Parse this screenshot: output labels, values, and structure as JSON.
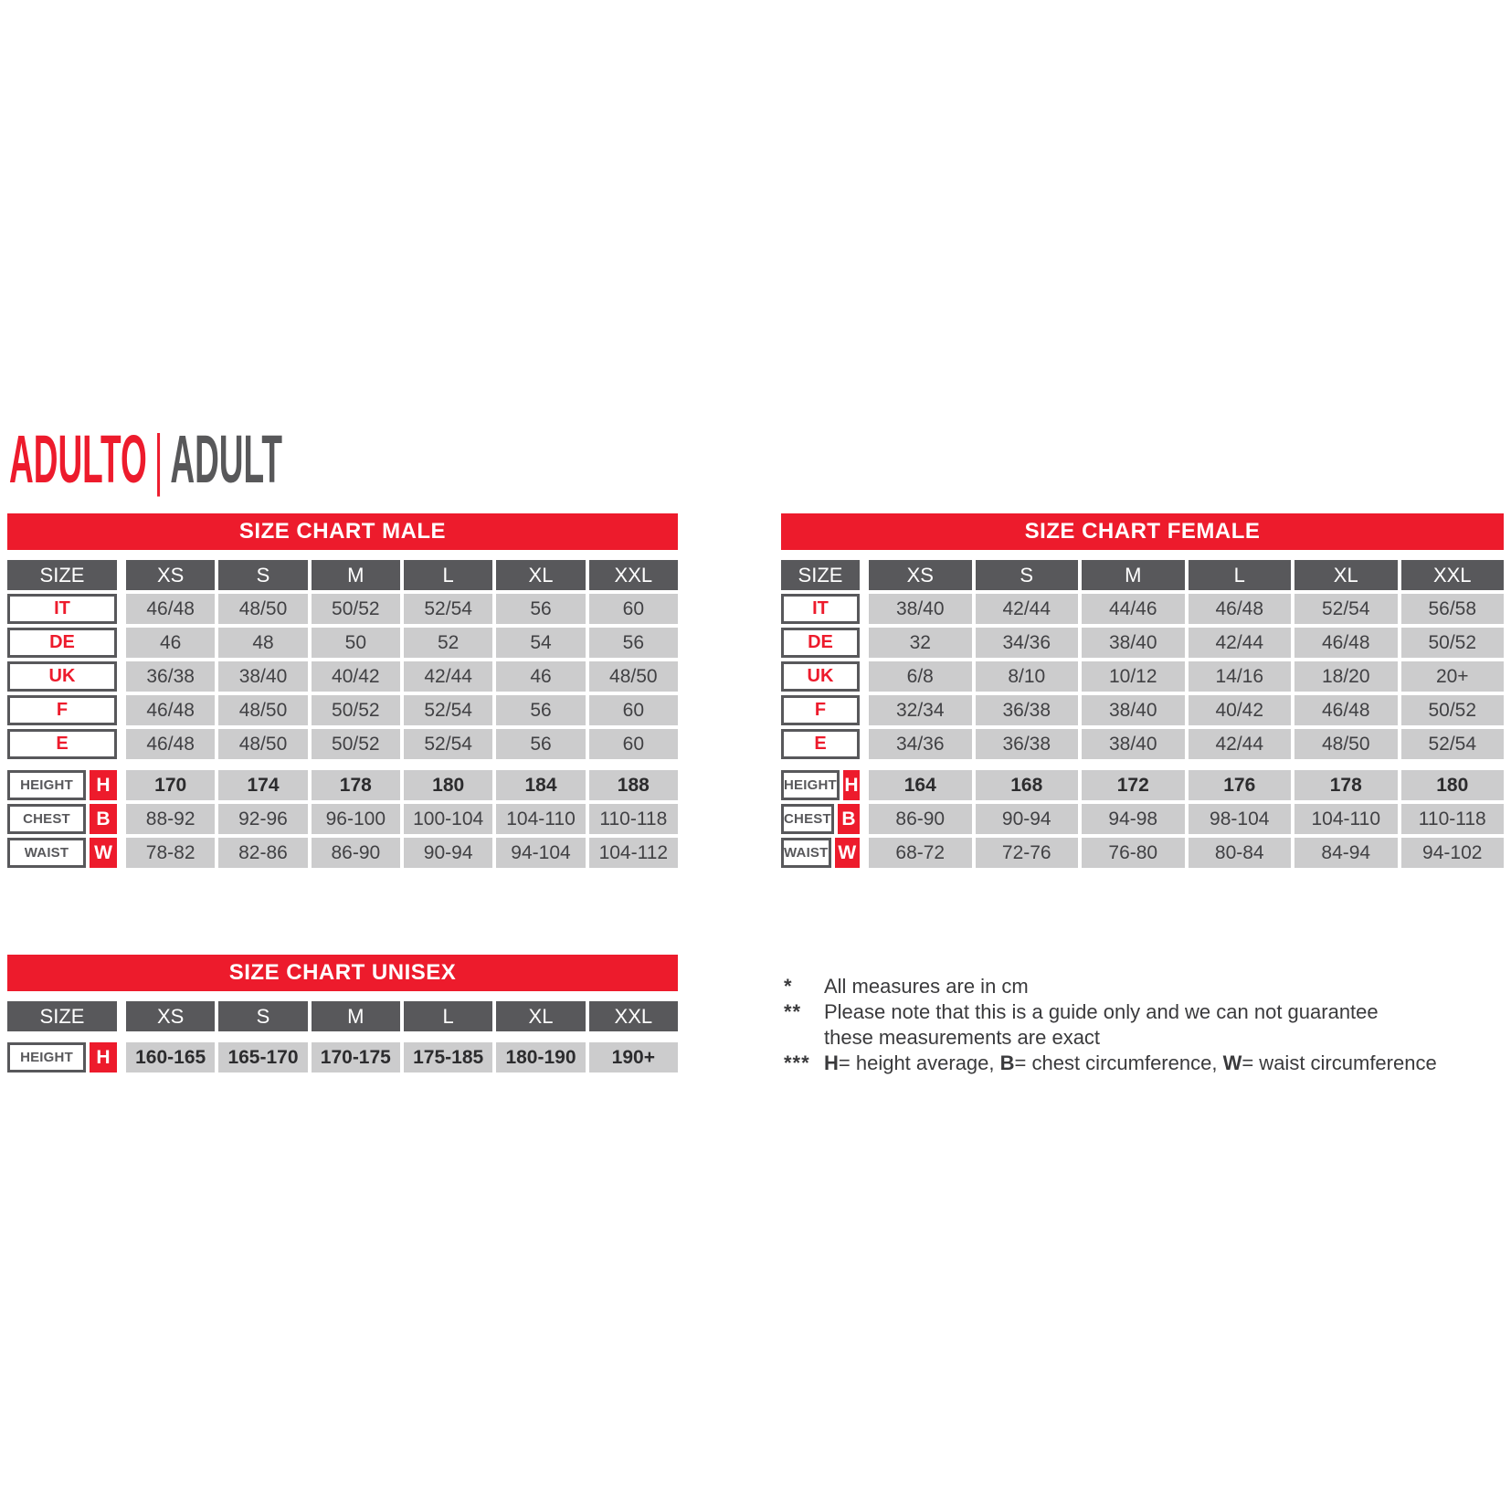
{
  "page": {
    "title": {
      "primary": "ADULTO",
      "separator": "|",
      "secondary": "ADULT"
    }
  },
  "colors": {
    "red": "#ed1b2c",
    "dark_gray": "#58585b",
    "light_gray": "#cccccd",
    "text_dark": "#414144",
    "title_gray": "#58585a"
  },
  "shared": {
    "size_label": "SIZE",
    "columns": [
      "XS",
      "S",
      "M",
      "L",
      "XL",
      "XXL"
    ]
  },
  "tables": {
    "male": {
      "title": "SIZE CHART MALE",
      "size_rows": [
        {
          "label": "IT",
          "values": [
            "46/48",
            "48/50",
            "50/52",
            "52/54",
            "56",
            "60"
          ]
        },
        {
          "label": "DE",
          "values": [
            "46",
            "48",
            "50",
            "52",
            "54",
            "56"
          ]
        },
        {
          "label": "UK",
          "values": [
            "36/38",
            "38/40",
            "40/42",
            "42/44",
            "46",
            "48/50"
          ]
        },
        {
          "label": "F",
          "values": [
            "46/48",
            "48/50",
            "50/52",
            "52/54",
            "56",
            "60"
          ]
        },
        {
          "label": "E",
          "values": [
            "46/48",
            "48/50",
            "50/52",
            "52/54",
            "56",
            "60"
          ]
        }
      ],
      "measure_rows": [
        {
          "label": "HEIGHT",
          "code": "H",
          "bold": true,
          "values": [
            "170",
            "174",
            "178",
            "180",
            "184",
            "188"
          ]
        },
        {
          "label": "CHEST",
          "code": "B",
          "bold": false,
          "values": [
            "88-92",
            "92-96",
            "96-100",
            "100-104",
            "104-110",
            "110-118"
          ]
        },
        {
          "label": "WAIST",
          "code": "W",
          "bold": false,
          "values": [
            "78-82",
            "82-86",
            "86-90",
            "90-94",
            "94-104",
            "104-112"
          ]
        }
      ]
    },
    "female": {
      "title": "SIZE CHART FEMALE",
      "size_rows": [
        {
          "label": "IT",
          "values": [
            "38/40",
            "42/44",
            "44/46",
            "46/48",
            "52/54",
            "56/58"
          ]
        },
        {
          "label": "DE",
          "values": [
            "32",
            "34/36",
            "38/40",
            "42/44",
            "46/48",
            "50/52"
          ]
        },
        {
          "label": "UK",
          "values": [
            "6/8",
            "8/10",
            "10/12",
            "14/16",
            "18/20",
            "20+"
          ]
        },
        {
          "label": "F",
          "values": [
            "32/34",
            "36/38",
            "38/40",
            "40/42",
            "46/48",
            "50/52"
          ]
        },
        {
          "label": "E",
          "values": [
            "34/36",
            "36/38",
            "38/40",
            "42/44",
            "48/50",
            "52/54"
          ]
        }
      ],
      "measure_rows": [
        {
          "label": "HEIGHT",
          "code": "H",
          "bold": true,
          "values": [
            "164",
            "168",
            "172",
            "176",
            "178",
            "180"
          ]
        },
        {
          "label": "CHEST",
          "code": "B",
          "bold": false,
          "values": [
            "86-90",
            "90-94",
            "94-98",
            "98-104",
            "104-110",
            "110-118"
          ]
        },
        {
          "label": "WAIST",
          "code": "W",
          "bold": false,
          "values": [
            "68-72",
            "72-76",
            "76-80",
            "80-84",
            "84-94",
            "94-102"
          ]
        }
      ]
    },
    "unisex": {
      "title": "SIZE CHART UNISEX",
      "size_rows": [],
      "measure_rows": [
        {
          "label": "HEIGHT",
          "code": "H",
          "bold": true,
          "values": [
            "160-165",
            "165-170",
            "170-175",
            "175-185",
            "180-190",
            "190+"
          ]
        }
      ]
    }
  },
  "footnotes": [
    {
      "marker": "*",
      "segments": [
        {
          "text": "All measures are in cm"
        }
      ]
    },
    {
      "marker": "**",
      "segments": [
        {
          "text": "Please note that this is a guide only and we can not guarantee\nthese measurements are exact"
        }
      ]
    },
    {
      "marker": "***",
      "segments": [
        {
          "text": "H",
          "bold": true
        },
        {
          "text": "= height average, "
        },
        {
          "text": "B",
          "bold": true
        },
        {
          "text": "= chest circumference, "
        },
        {
          "text": "W",
          "bold": true
        },
        {
          "text": "= waist circumference"
        }
      ]
    }
  ]
}
